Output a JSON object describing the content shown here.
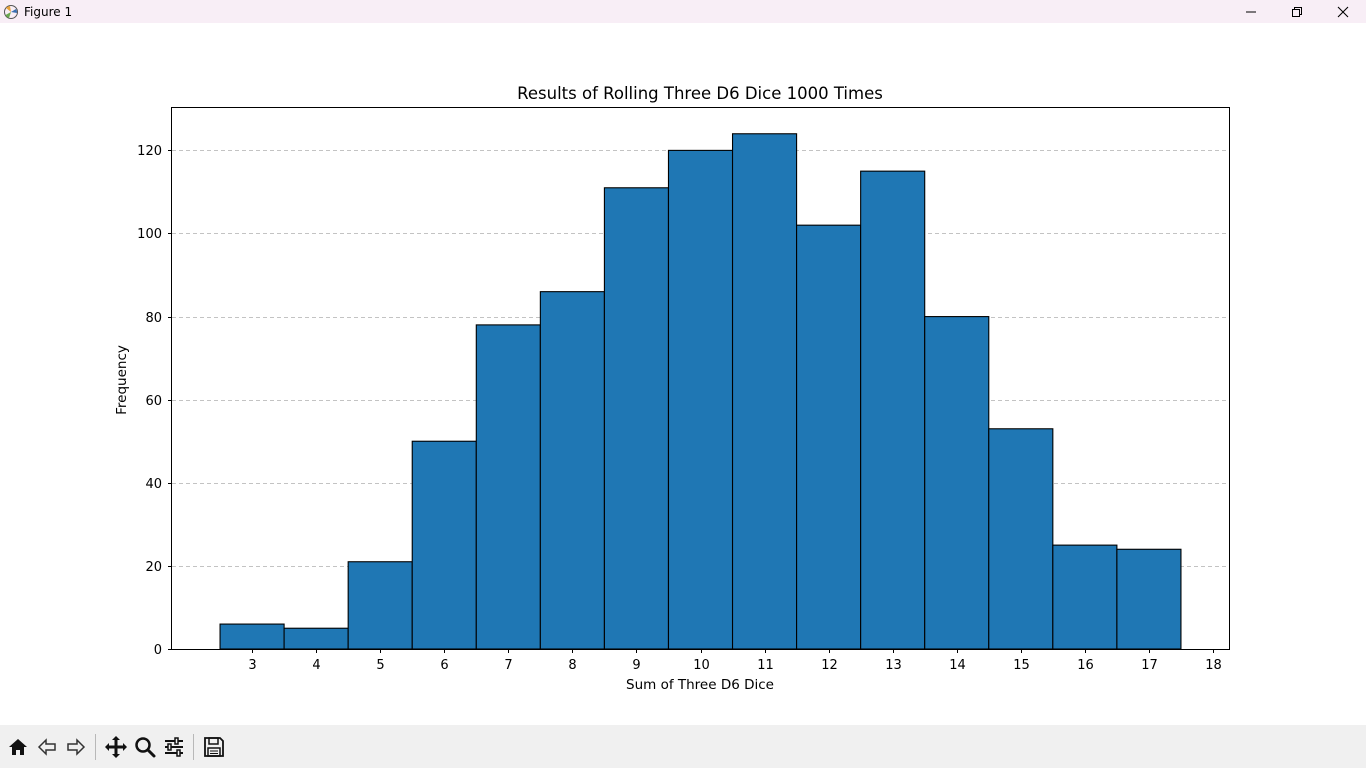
{
  "window": {
    "title": "Figure 1"
  },
  "toolbar": {
    "buttons": [
      "home-icon",
      "back-arrow-icon",
      "forward-arrow-icon",
      "pan-icon",
      "zoom-icon",
      "configure-subplots-icon",
      "save-icon"
    ]
  },
  "chart_data": {
    "type": "bar",
    "title": "Results of Rolling Three D6 Dice 1000 Times",
    "xlabel": "Sum of Three D6 Dice",
    "ylabel": "Frequency",
    "categories": [
      3,
      4,
      5,
      6,
      7,
      8,
      9,
      10,
      11,
      12,
      13,
      14,
      15,
      16,
      17
    ],
    "values": [
      6,
      5,
      21,
      50,
      78,
      86,
      111,
      120,
      124,
      102,
      115,
      80,
      53,
      25,
      24
    ],
    "x_ticks": [
      "3",
      "4",
      "5",
      "6",
      "7",
      "8",
      "9",
      "10",
      "11",
      "12",
      "13",
      "14",
      "15",
      "16",
      "17",
      "18"
    ],
    "y_ticks": [
      "0",
      "20",
      "40",
      "60",
      "80",
      "100",
      "120"
    ],
    "xlim": [
      1.75,
      18.25
    ],
    "ylim": [
      0,
      130.2
    ],
    "bar_color": "#1f77b4",
    "edge_color": "#000000",
    "grid": "y-dashed"
  }
}
